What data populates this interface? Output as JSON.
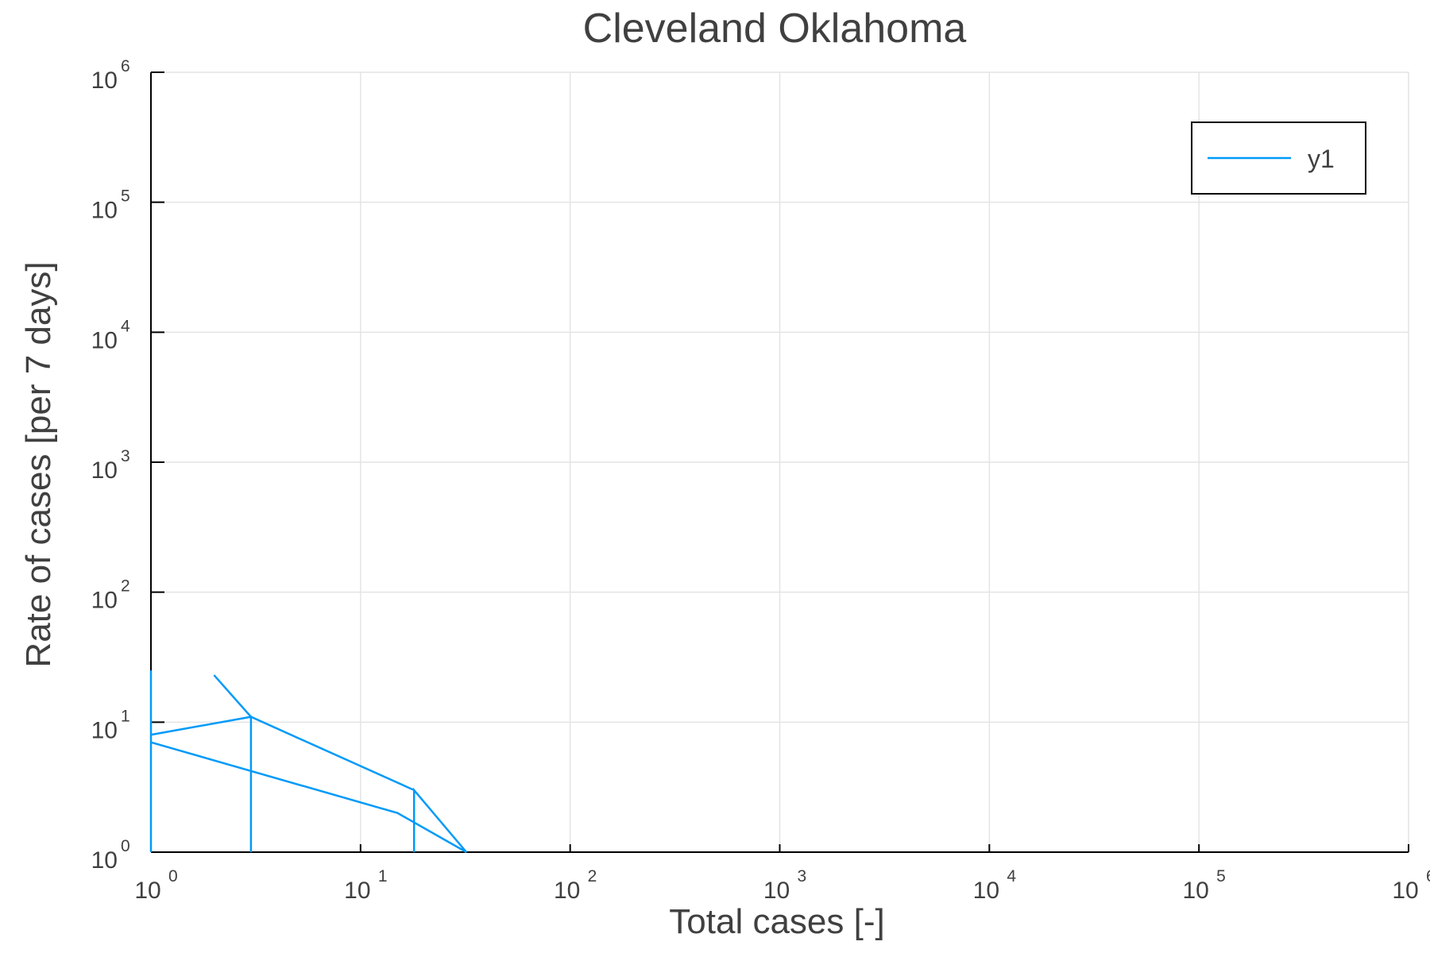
{
  "chart_data": {
    "type": "line",
    "title": "Cleveland Oklahoma",
    "xlabel": "Total cases [-]",
    "ylabel": "Rate of cases [per 7 days]",
    "xscale": "log",
    "yscale": "log",
    "xlim": [
      1,
      1000000
    ],
    "ylim": [
      1,
      1000000
    ],
    "grid": true,
    "legend_position": "top-right",
    "tick_base": "10",
    "x_tick_exponents": [
      "0",
      "1",
      "2",
      "3",
      "4",
      "5",
      "6"
    ],
    "y_tick_exponents": [
      "0",
      "1",
      "2",
      "3",
      "4",
      "5",
      "6"
    ],
    "series": [
      {
        "name": "y1",
        "color": "#009af9",
        "x": [
          1,
          1,
          1,
          3,
          3,
          3,
          18,
          18,
          18,
          32,
          15,
          1,
          1,
          3,
          2
        ],
        "y": [
          1,
          25,
          8,
          11,
          1,
          11,
          3,
          1,
          3,
          1,
          2,
          7,
          8,
          11,
          23
        ]
      }
    ]
  }
}
